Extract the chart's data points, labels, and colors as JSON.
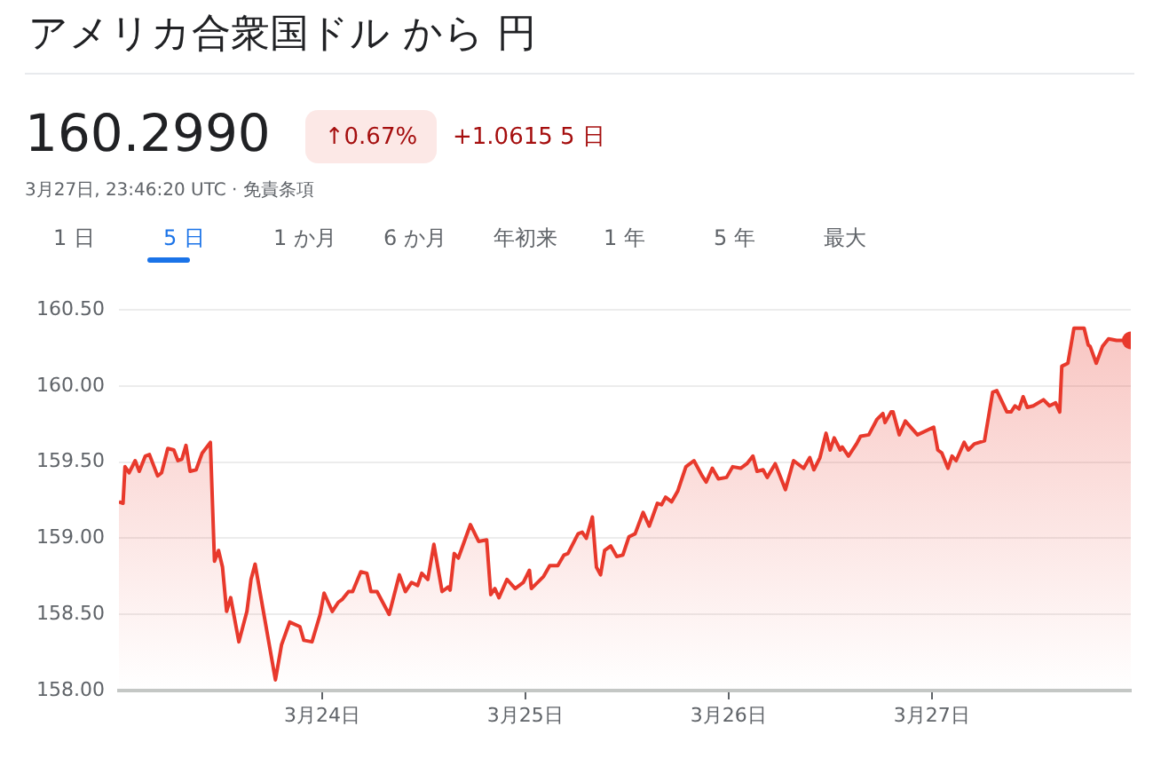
{
  "chart_data": {
    "type": "area",
    "title": "アメリカ合衆国ドル から 円",
    "subtitle": "160.2990",
    "annotations": [
      "↑0.67%",
      "+1.0615 5 日",
      "3月27日, 23:46:20 UTC · 免責条項",
      "1 日",
      "5 日",
      "1 か月",
      "6 か月",
      "年初来",
      "1 年",
      "5 年",
      "最大"
    ],
    "x": [
      "--03-23T00:00",
      "--03-23T00:29",
      "--03-23T00:43",
      "--03-23T01:12",
      "--03-23T01:55",
      "--03-23T02:24",
      "--03-23T03:07",
      "--03-23T03:36",
      "--03-23T04:34",
      "--03-23T05:02",
      "--03-23T05:46",
      "--03-23T06:29",
      "--03-23T06:58",
      "--03-23T07:26",
      "--03-23T07:55",
      "--03-23T08:24",
      "--03-23T09:07",
      "--03-23T09:50",
      "--03-23T10:48",
      "--03-23T11:17",
      "--03-23T11:46",
      "--03-23T12:14",
      "--03-23T12:43",
      "--03-23T13:12",
      "--03-23T14:10",
      "--03-23T15:07",
      "--03-23T15:36",
      "--03-23T16:05",
      "--03-23T18:29",
      "--03-23T19:12",
      "--03-23T20:10",
      "--03-23T21:22",
      "--03-23T21:50",
      "--03-23T22:48",
      "--03-23T23:46",
      "--03-24T00:14",
      "--03-24T01:12",
      "--03-24T01:55",
      "--03-24T02:24",
      "--03-24T03:07",
      "--03-24T03:36",
      "--03-24T04:34",
      "--03-24T05:17",
      "--03-24T05:46",
      "--03-24T06:29",
      "--03-24T07:55",
      "--03-24T09:07",
      "--03-24T09:50",
      "--03-24T10:34",
      "--03-24T11:17",
      "--03-24T11:46",
      "--03-24T12:29",
      "--03-24T13:12",
      "--03-24T14:10",
      "--03-24T14:53",
      "--03-24T15:07",
      "--03-24T15:36",
      "--03-24T16:05",
      "--03-24T17:31",
      "--03-24T18:29",
      "--03-24T19:26",
      "--03-24T19:55",
      "--03-24T20:24",
      "--03-24T20:53",
      "--03-24T21:50",
      "--03-24T22:48",
      "--03-24T23:46",
      "--03-25T00:29",
      "--03-25T00:43",
      "--03-25T02:10",
      "--03-25T02:53",
      "--03-25T03:50",
      "--03-25T04:34",
      "--03-25T05:02",
      "--03-25T06:14",
      "--03-25T06:43",
      "--03-25T07:12",
      "--03-25T07:55",
      "--03-25T08:24",
      "--03-25T08:53",
      "--03-25T09:22",
      "--03-25T10:05",
      "--03-25T10:48",
      "--03-25T11:31",
      "--03-25T12:14",
      "--03-25T12:58",
      "--03-25T13:55",
      "--03-25T14:38",
      "--03-25T15:36",
      "--03-25T16:05",
      "--03-25T16:34",
      "--03-25T17:17",
      "--03-25T18:00",
      "--03-25T18:58",
      "--03-25T19:55",
      "--03-25T20:53",
      "--03-25T21:22",
      "--03-25T22:05",
      "--03-25T22:48",
      "--03-25T23:46",
      "--03-26T00:29",
      "--03-26T01:26",
      "--03-26T02:10",
      "--03-26T02:53",
      "--03-26T03:22",
      "--03-26T04:05",
      "--03-26T04:34",
      "--03-26T05:31",
      "--03-26T06:43",
      "--03-26T07:41",
      "--03-26T08:53",
      "--03-26T09:36",
      "--03-26T10:05",
      "--03-26T10:48",
      "--03-26T11:31",
      "--03-26T12:00",
      "--03-26T12:29",
      "--03-26T13:12",
      "--03-26T13:26",
      "--03-26T14:10",
      "--03-26T15:07",
      "--03-26T15:36",
      "--03-26T16:34",
      "--03-26T17:31",
      "--03-26T18:14",
      "--03-26T18:29",
      "--03-26T19:12",
      "--03-26T19:26",
      "--03-26T20:10",
      "--03-26T20:53",
      "--03-26T22:19",
      "--03-27T00:14",
      "--03-27T00:43",
      "--03-27T01:12",
      "--03-27T01:55",
      "--03-27T02:24",
      "--03-27T02:53",
      "--03-27T03:50",
      "--03-27T04:19",
      "--03-27T05:02",
      "--03-27T06:14",
      "--03-27T07:12",
      "--03-27T07:41",
      "--03-27T08:53",
      "--03-27T09:22",
      "--03-27T09:50",
      "--03-27T10:19",
      "--03-27T10:48",
      "--03-27T11:17",
      "--03-27T12:00",
      "--03-27T13:12",
      "--03-27T13:55",
      "--03-27T14:38",
      "--03-27T15:07",
      "--03-27T15:22",
      "--03-27T16:05",
      "--03-27T16:48",
      "--03-27T18:00",
      "--03-27T18:29",
      "--03-27T18:43",
      "--03-27T19:26",
      "--03-27T20:10",
      "--03-27T20:53",
      "--03-27T21:50",
      "--03-27T23:31"
    ],
    "series": [
      {
        "color": "#e8392c",
        "values": [
          159.24,
          159.23,
          159.47,
          159.43,
          159.51,
          159.44,
          159.54,
          159.55,
          159.41,
          159.43,
          159.59,
          159.58,
          159.51,
          159.52,
          159.61,
          159.44,
          159.45,
          159.56,
          159.63,
          158.85,
          158.92,
          158.81,
          158.52,
          158.61,
          158.32,
          158.52,
          158.73,
          158.83,
          158.07,
          158.3,
          158.45,
          158.42,
          158.33,
          158.32,
          158.5,
          158.64,
          158.52,
          158.58,
          158.6,
          158.65,
          158.65,
          158.78,
          158.77,
          158.65,
          158.65,
          158.5,
          158.76,
          158.65,
          158.71,
          158.69,
          158.77,
          158.73,
          158.96,
          158.65,
          158.68,
          158.66,
          158.9,
          158.87,
          159.09,
          158.98,
          158.99,
          158.63,
          158.67,
          158.61,
          158.73,
          158.67,
          158.71,
          158.79,
          158.67,
          158.75,
          158.82,
          158.82,
          158.89,
          158.9,
          159.03,
          159.04,
          159.0,
          159.14,
          158.81,
          158.76,
          158.92,
          158.95,
          158.88,
          158.89,
          159.01,
          159.03,
          159.17,
          159.08,
          159.23,
          159.22,
          159.27,
          159.24,
          159.31,
          159.47,
          159.51,
          159.41,
          159.37,
          159.46,
          159.39,
          159.4,
          159.47,
          159.46,
          159.49,
          159.54,
          159.44,
          159.45,
          159.4,
          159.49,
          159.32,
          159.51,
          159.46,
          159.53,
          159.45,
          159.53,
          159.69,
          159.58,
          159.66,
          159.58,
          159.6,
          159.54,
          159.62,
          159.67,
          159.68,
          159.78,
          159.82,
          159.76,
          159.83,
          159.83,
          159.68,
          159.77,
          159.68,
          159.73,
          159.58,
          159.56,
          159.46,
          159.54,
          159.51,
          159.63,
          159.58,
          159.62,
          159.64,
          159.96,
          159.97,
          159.83,
          159.83,
          159.87,
          159.85,
          159.93,
          159.86,
          159.87,
          159.91,
          159.87,
          159.89,
          159.83,
          160.13,
          160.15,
          160.38,
          160.38,
          160.27,
          160.26,
          160.15,
          160.26,
          160.31,
          160.3,
          160.3
        ]
      }
    ],
    "xlim": [
      "--03-23T00:00",
      "--03-27T23:31"
    ],
    "xticks": [
      {
        "value": "--03-24",
        "label": "3月24日"
      },
      {
        "value": "--03-25",
        "label": "3月25日"
      },
      {
        "value": "--03-26",
        "label": "3月26日"
      },
      {
        "value": "--03-27",
        "label": "3月27日"
      }
    ],
    "ylim": [
      158.0,
      160.5
    ],
    "yticks": [
      {
        "value": 158,
        "label": "158.00"
      },
      {
        "value": 158.5,
        "label": "158.50"
      },
      {
        "value": 159,
        "label": "159.00"
      },
      {
        "value": 159.5,
        "label": "159.50"
      },
      {
        "value": 160,
        "label": "160.00"
      },
      {
        "value": 160.5,
        "label": "160.50"
      }
    ],
    "grid": "y",
    "legend": false,
    "marker": "none",
    "line_style": "solid"
  }
}
